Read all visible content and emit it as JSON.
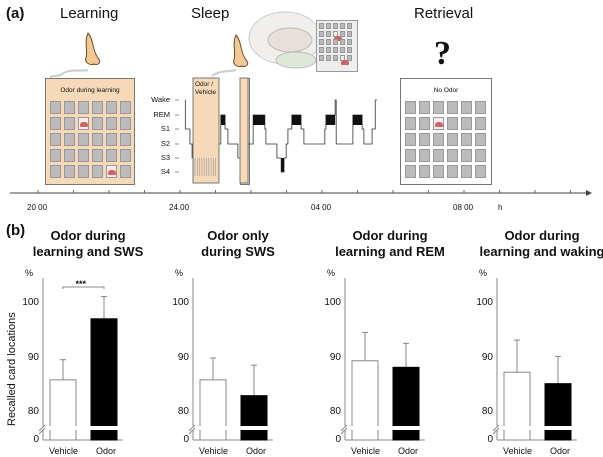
{
  "panel_a": {
    "label": "(a)",
    "phases": [
      "Learning",
      "Sleep",
      "Retrieval"
    ],
    "learning_box_title": "Odor during learning",
    "sleep_box_title_1": "Odor /",
    "sleep_box_title_2": "Vehicle",
    "retrieval_box_title": "No Odor",
    "question_mark": "?",
    "stages": [
      "Wake",
      "REM",
      "S1",
      "S2",
      "S3",
      "S4"
    ],
    "time_labels": [
      "20 00",
      "24.00",
      "04 00",
      "08 00"
    ],
    "time_unit": "h",
    "hypnogram": [
      [
        0.14,
        0
      ],
      [
        0.15,
        2
      ],
      [
        0.28,
        3
      ],
      [
        0.34,
        4
      ],
      [
        0.45,
        3
      ],
      [
        1.15,
        1
      ],
      [
        1.27,
        2
      ],
      [
        1.35,
        3
      ],
      [
        1.63,
        4
      ],
      [
        1.92,
        3
      ],
      [
        2.06,
        1
      ],
      [
        2.39,
        2
      ],
      [
        2.42,
        3
      ],
      [
        2.73,
        4
      ],
      [
        2.85,
        5
      ],
      [
        2.93,
        4
      ],
      [
        2.99,
        3
      ],
      [
        3.04,
        2
      ],
      [
        3.15,
        1
      ],
      [
        3.41,
        2
      ],
      [
        3.49,
        3
      ],
      [
        4.08,
        2
      ],
      [
        4.11,
        1
      ],
      [
        4.37,
        0
      ],
      [
        4.4,
        3
      ],
      [
        4.87,
        1
      ],
      [
        5.13,
        2
      ],
      [
        5.18,
        3
      ],
      [
        5.41,
        2
      ],
      [
        5.5,
        0
      ],
      [
        5.55,
        0
      ]
    ],
    "colors": {
      "odor_box": "#f5d9b8",
      "card": "#bbbbbb"
    }
  },
  "panel_b": {
    "label": "(b)",
    "ylabel": "Recalled card locations"
  },
  "chart_data": [
    {
      "type": "bar",
      "title": "Odor during learning and SWS",
      "title_1": "Odor during",
      "title_2": "learning and SWS",
      "categories": [
        "Vehicle",
        "Odor"
      ],
      "values": [
        85.9,
        97.1
      ],
      "errors": [
        3.7,
        4.1
      ],
      "significance": "***",
      "ylabel": "%",
      "yticks": [
        "100",
        "90",
        "80",
        "0"
      ],
      "ylim": [
        75,
        105
      ],
      "axis_break": true
    },
    {
      "type": "bar",
      "title": "Odor only during SWS",
      "title_1": "Odor only",
      "title_2": "during SWS",
      "categories": [
        "Vehicle",
        "Odor"
      ],
      "values": [
        85.9,
        83.0
      ],
      "errors": [
        4.0,
        5.6
      ],
      "ylabel": "%",
      "yticks": [
        "100",
        "90",
        "80",
        "0"
      ],
      "ylim": [
        75,
        105
      ],
      "axis_break": true
    },
    {
      "type": "bar",
      "title": "Odor during learning and REM",
      "title_1": "Odor during",
      "title_2": "learning and REM",
      "categories": [
        "Vehicle",
        "Odor"
      ],
      "values": [
        89.4,
        88.2
      ],
      "errors": [
        5.2,
        4.4
      ],
      "ylabel": "%",
      "yticks": [
        "100",
        "90",
        "80",
        "0"
      ],
      "ylim": [
        75,
        105
      ],
      "axis_break": true
    },
    {
      "type": "bar",
      "title": "Odor during learning and waking",
      "title_1": "Odor during",
      "title_2": "learning and waking",
      "categories": [
        "Vehicle",
        "Odor"
      ],
      "values": [
        87.3,
        85.2
      ],
      "errors": [
        5.9,
        5.0
      ],
      "ylabel": "%",
      "yticks": [
        "100",
        "90",
        "80",
        "0"
      ],
      "ylim": [
        75,
        105
      ],
      "axis_break": true
    }
  ]
}
